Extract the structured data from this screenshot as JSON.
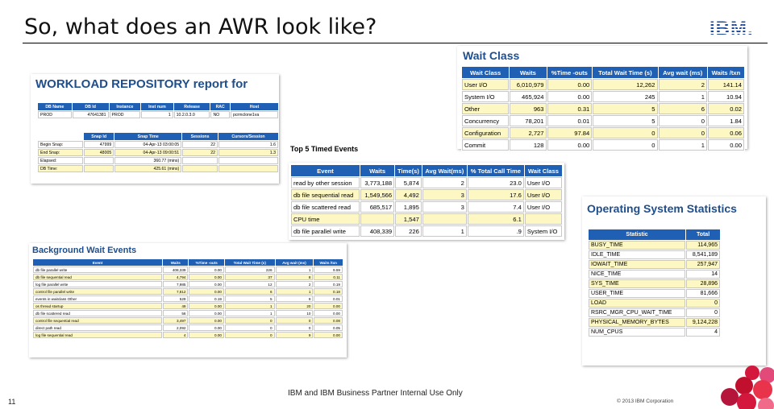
{
  "slide": {
    "title": "So, what does an AWR look like?",
    "logo": "IBM.",
    "footer": "IBM and IBM Business Partner Internal Use Only",
    "page_number": "11",
    "copyright": "© 2013 IBM Corporation"
  },
  "workload": {
    "heading": "WORKLOAD REPOSITORY report for",
    "db_headers": [
      "DB Name",
      "DB Id",
      "Instance",
      "Inst num",
      "Release",
      "RAC",
      "Host"
    ],
    "db_row": [
      "PROD",
      "47641381",
      "PROD",
      "1",
      "10.2.0.3.0",
      "NO",
      "pcrmclone1va"
    ],
    "snap_headers": [
      "",
      "Snap Id",
      "Snap Time",
      "Sessions",
      "Cursors/Session"
    ],
    "snap_rows": [
      [
        "Begin Snap:",
        "47999",
        "04-Apr-13 03:00:05",
        "22",
        "1.6"
      ],
      [
        "End Snap:",
        "48005",
        "04-Apr-13 09:00:51",
        "22",
        "1.3"
      ],
      [
        "Elapsed:",
        "",
        "360.77 (mins)",
        "",
        ""
      ],
      [
        "DB Time:",
        "",
        "425.61 (mins)",
        "",
        ""
      ]
    ]
  },
  "background": {
    "heading": "Background Wait Events",
    "headers": [
      "Event",
      "Waits",
      "%Time -outs",
      "Total Wait Time (s)",
      "Avg wait (ms)",
      "Waits /txn"
    ],
    "rows": [
      [
        "db file parallel write",
        "408,339",
        "0.00",
        "226",
        "1",
        "9.59"
      ],
      [
        "db file sequential read",
        "4,794",
        "0.00",
        "37",
        "8",
        "0.11"
      ],
      [
        "log file parallel write",
        "7,985",
        "0.00",
        "12",
        "2",
        "0.19"
      ],
      [
        "control file parallel write",
        "7,812",
        "0.00",
        "6",
        "1",
        "0.18"
      ],
      [
        "events in waitclass Other",
        "529",
        "0.19",
        "5",
        "9",
        "0.01"
      ],
      [
        "os thread startup",
        "49",
        "0.00",
        "1",
        "20",
        "0.00"
      ],
      [
        "db file scattered read",
        "56",
        "0.00",
        "1",
        "10",
        "0.00"
      ],
      [
        "control file sequential read",
        "3,497",
        "0.00",
        "0",
        "0",
        "0.08"
      ],
      [
        "direct path read",
        "2,092",
        "0.00",
        "0",
        "0",
        "0.05"
      ],
      [
        "log file sequential read",
        "4",
        "0.00",
        "0",
        "9",
        "0.00"
      ]
    ]
  },
  "top5": {
    "heading": "Top 5 Timed Events",
    "headers": [
      "Event",
      "Waits",
      "Time(s)",
      "Avg Wait(ms)",
      "% Total Call Time",
      "Wait Class"
    ],
    "rows": [
      [
        "read by other session",
        "3,773,188",
        "5,874",
        "2",
        "23.0",
        "User I/O"
      ],
      [
        "db file sequential read",
        "1,549,566",
        "4,492",
        "3",
        "17.6",
        "User I/O"
      ],
      [
        "db file scattered read",
        "685,517",
        "1,895",
        "3",
        "7.4",
        "User I/O"
      ],
      [
        "CPU time",
        "",
        "1,547",
        "",
        "6.1",
        ""
      ],
      [
        "db file parallel write",
        "408,339",
        "226",
        "1",
        ".9",
        "System I/O"
      ]
    ]
  },
  "wait_class": {
    "heading": "Wait Class",
    "headers": [
      "Wait Class",
      "Waits",
      "%Time -outs",
      "Total Wait Time (s)",
      "Avg wait (ms)",
      "Waits /txn"
    ],
    "rows": [
      [
        "User I/O",
        "6,010,979",
        "0.00",
        "12,262",
        "2",
        "141.14"
      ],
      [
        "System I/O",
        "465,924",
        "0.00",
        "245",
        "1",
        "10.94"
      ],
      [
        "Other",
        "963",
        "0.31",
        "5",
        "6",
        "0.02"
      ],
      [
        "Concurrency",
        "78,201",
        "0.01",
        "5",
        "0",
        "1.84"
      ],
      [
        "Configuration",
        "2,727",
        "97.84",
        "0",
        "0",
        "0.06"
      ],
      [
        "Commit",
        "128",
        "0.00",
        "0",
        "1",
        "0.00"
      ]
    ]
  },
  "os_stats": {
    "heading": "Operating System Statistics",
    "headers": [
      "Statistic",
      "Total"
    ],
    "rows": [
      [
        "BUSY_TIME",
        "114,965"
      ],
      [
        "IDLE_TIME",
        "8,541,189"
      ],
      [
        "IOWAIT_TIME",
        "257,947"
      ],
      [
        "NICE_TIME",
        "14"
      ],
      [
        "SYS_TIME",
        "28,896"
      ],
      [
        "USER_TIME",
        "81,666"
      ],
      [
        "LOAD",
        "0"
      ],
      [
        "RSRC_MGR_CPU_WAIT_TIME",
        "0"
      ],
      [
        "PHYSICAL_MEMORY_BYTES",
        "9,124,228"
      ],
      [
        "NUM_CPUS",
        "4"
      ]
    ]
  },
  "colors": {
    "header_blue": "#1f5fb4",
    "alt_row": "#fdf7c3",
    "heading_blue": "#1f4e8c",
    "accent_red": "#d4183d"
  }
}
